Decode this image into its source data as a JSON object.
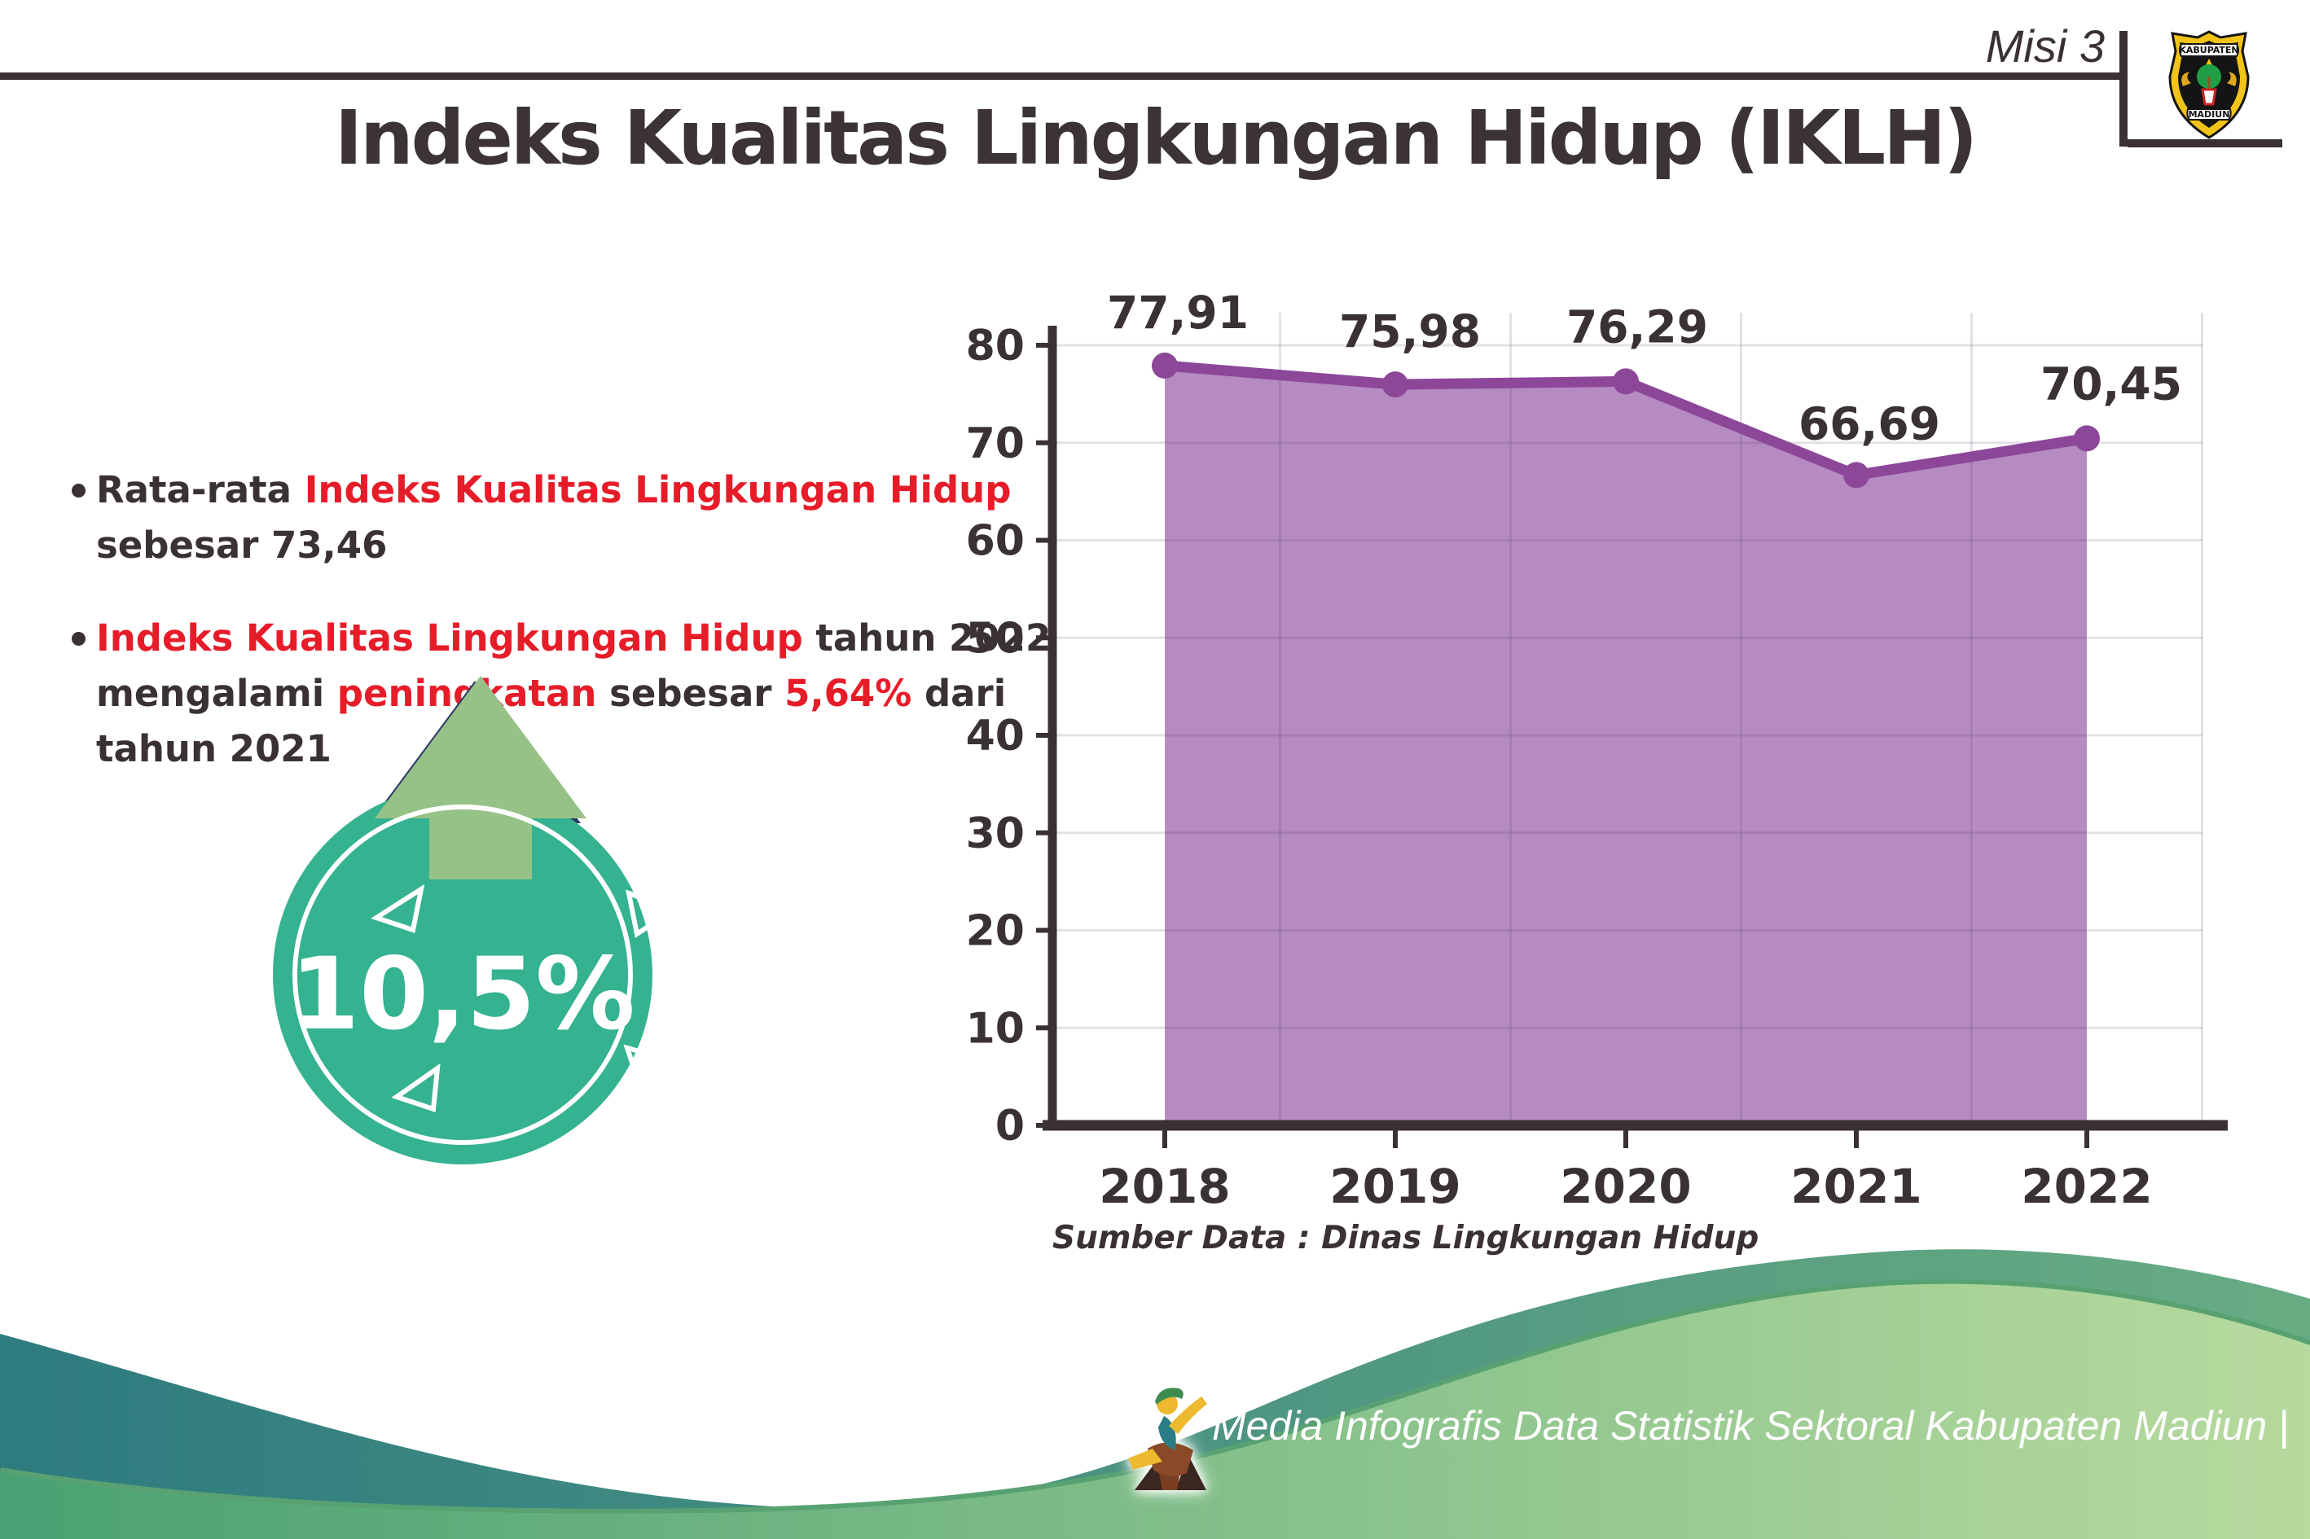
{
  "header": {
    "misi_label": "Misi 3",
    "title": "Indeks Kualitas Lingkungan Hidup (IKLH)",
    "logo": {
      "top_text": "KABUPATEN",
      "bottom_text": "MADIUN"
    }
  },
  "bullets": [
    {
      "lines": [
        [
          {
            "t": "Rata-rata ",
            "c": "dark"
          },
          {
            "t": "Indeks Kualitas Lingkungan Hidup",
            "c": "red"
          }
        ],
        [
          {
            "t": "sebesar 73,46",
            "c": "dark"
          }
        ]
      ]
    },
    {
      "lines": [
        [
          {
            "t": "Indeks Kualitas Lingkungan Hidup",
            "c": "red"
          },
          {
            "t": " tahun 2022",
            "c": "dark"
          }
        ],
        [
          {
            "t": "mengalami ",
            "c": "dark"
          },
          {
            "t": "peningkatan",
            "c": "red"
          },
          {
            "t": " sebesar ",
            "c": "dark"
          },
          {
            "t": "5,64%",
            "c": "red"
          },
          {
            "t": " dari",
            "c": "dark"
          }
        ],
        [
          {
            "t": "tahun 2021",
            "c": "dark"
          }
        ]
      ]
    }
  ],
  "badge": {
    "value": "10,5%",
    "direction": "up-arrow"
  },
  "chart_data": {
    "type": "area",
    "categories": [
      "2018",
      "2019",
      "2020",
      "2021",
      "2022"
    ],
    "values": [
      77.91,
      75.98,
      76.29,
      66.69,
      70.45
    ],
    "value_labels": [
      "77,91",
      "75,98",
      "76,29",
      "66,69",
      "70,45"
    ],
    "title": "",
    "xlabel": "",
    "ylabel": "",
    "ylim": [
      0,
      80
    ],
    "ytick_step": 10,
    "grid": true,
    "legend": "none",
    "source_note": "Sumber Data : Dinas Lingkungan Hidup"
  },
  "footer": {
    "credit": "Media Infografis Data Statistik Sektoral Kabupaten Madiun |"
  },
  "colors": {
    "text_dark": "#3a3132",
    "text_red": "#e71c29",
    "chart_line": "#8c4799",
    "chart_fill": "#b58bc1",
    "gridline": "rgba(90,70,100,0.16)",
    "badge_teal": "#35b28f",
    "arrow_green": "#97c287",
    "arrow_outline": "#2b3a67",
    "footer_teal_start": "#2e7b80",
    "footer_teal_end": "#68ac83",
    "footer_green_start": "#4aa173",
    "footer_green_end": "#b7da9e"
  }
}
